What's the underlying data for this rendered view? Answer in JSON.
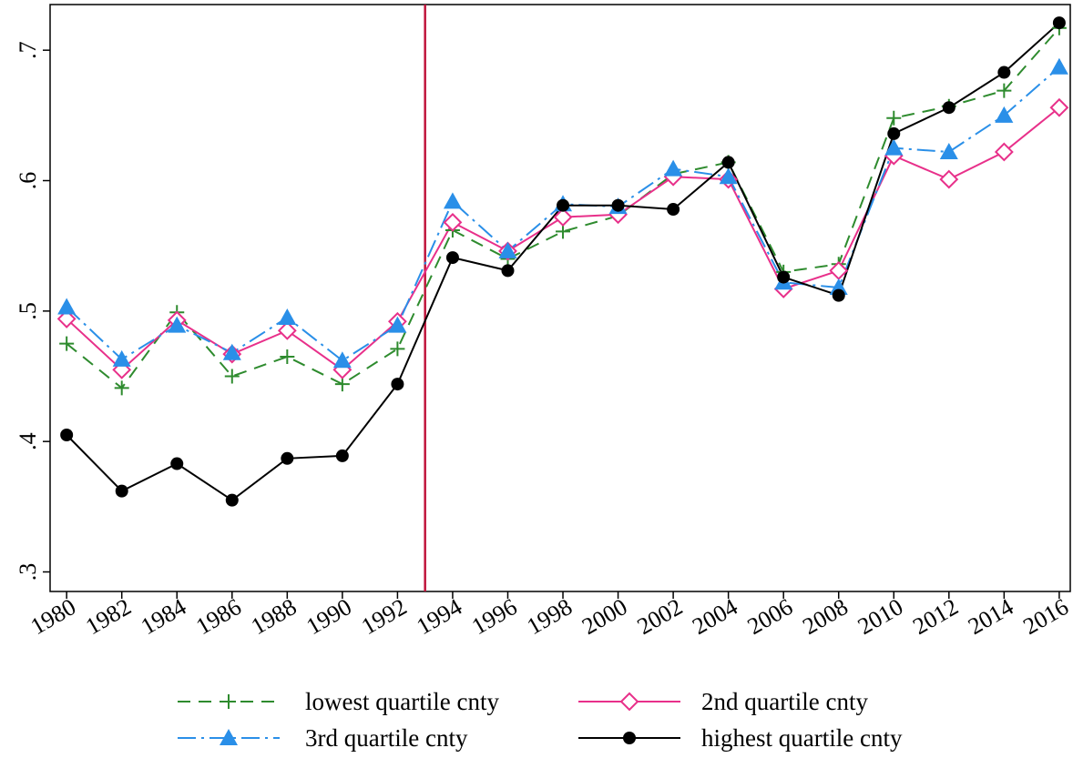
{
  "chart_data": {
    "type": "line",
    "x": [
      1980,
      1982,
      1984,
      1986,
      1988,
      1990,
      1992,
      1994,
      1996,
      1998,
      2000,
      2002,
      2004,
      2006,
      2008,
      2010,
      2012,
      2014,
      2016
    ],
    "xlim": [
      1979.4,
      2016.4
    ],
    "xticks": [
      1980,
      1982,
      1984,
      1986,
      1988,
      1990,
      1992,
      1994,
      1996,
      1998,
      2000,
      2002,
      2004,
      2006,
      2008,
      2010,
      2012,
      2014,
      2016
    ],
    "ylim": [
      0.285,
      0.735
    ],
    "yticks": [
      {
        "value": 0.3,
        "label": ".3"
      },
      {
        "value": 0.4,
        "label": ".4"
      },
      {
        "value": 0.5,
        "label": ".5"
      },
      {
        "value": 0.6,
        "label": ".6"
      },
      {
        "value": 0.7,
        "label": ".7"
      }
    ],
    "vline": 1993,
    "vline_color": "#c0143c",
    "grid": false,
    "series": [
      {
        "name": "lowest quartile cnty",
        "color": "#2e8b2e",
        "marker": "plus",
        "dash": "14,9",
        "values": [
          0.475,
          0.441,
          0.499,
          0.45,
          0.465,
          0.444,
          0.471,
          0.562,
          0.54,
          0.561,
          0.573,
          0.605,
          0.614,
          0.53,
          0.536,
          0.648,
          0.657,
          0.669,
          0.717
        ]
      },
      {
        "name": "2nd quartile cnty",
        "color": "#e8308a",
        "marker": "diamond",
        "dash": "none",
        "values": [
          0.494,
          0.455,
          0.493,
          0.467,
          0.485,
          0.455,
          0.492,
          0.568,
          0.546,
          0.572,
          0.574,
          0.603,
          0.601,
          0.517,
          0.531,
          0.619,
          0.601,
          0.622,
          0.656
        ]
      },
      {
        "name": "3rd quartile cnty",
        "color": "#2a8fe8",
        "marker": "triangle",
        "dash": "20,6,3,6",
        "values": [
          0.503,
          0.463,
          0.489,
          0.468,
          0.495,
          0.462,
          0.489,
          0.584,
          0.546,
          0.582,
          0.58,
          0.609,
          0.603,
          0.522,
          0.518,
          0.625,
          0.622,
          0.65,
          0.687
        ]
      },
      {
        "name": "highest quartile cnty",
        "color": "#000000",
        "marker": "circle",
        "dash": "none",
        "values": [
          0.405,
          0.362,
          0.383,
          0.355,
          0.387,
          0.389,
          0.444,
          0.541,
          0.531,
          0.581,
          0.581,
          0.578,
          0.614,
          0.526,
          0.512,
          0.636,
          0.656,
          0.683,
          0.721
        ]
      }
    ]
  }
}
